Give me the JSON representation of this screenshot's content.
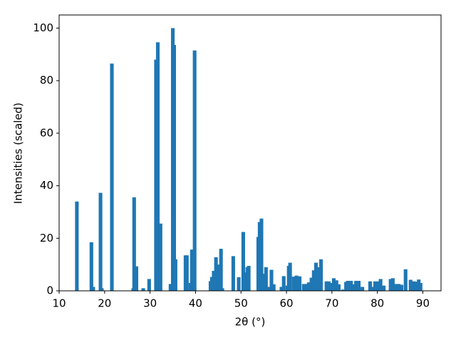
{
  "chart_data": {
    "type": "bar",
    "x_label": "2θ (°)",
    "y_label": "Intensities (scaled)",
    "color": "#1f77b4",
    "x": [
      13.9,
      17.1,
      17.5,
      19.1,
      19.4,
      21.6,
      26.3,
      26.5,
      27.0,
      28.5,
      29.8,
      31.3,
      31.7,
      32.3,
      34.5,
      35.0,
      35.3,
      35.6,
      37.8,
      38.1,
      38.9,
      39.2,
      39.8,
      43.3,
      43.6,
      44.0,
      44.5,
      45.0,
      45.6,
      45.9,
      48.3,
      49.5,
      50.5,
      50.9,
      51.4,
      51.7,
      53.8,
      54.1,
      54.5,
      55.0,
      55.5,
      56.1,
      56.7,
      57.2,
      58.9,
      59.4,
      60.2,
      60.5,
      60.8,
      61.6,
      62.2,
      62.9,
      63.8,
      64.4,
      64.9,
      65.5,
      66.0,
      66.5,
      66.9,
      67.6,
      68.8,
      69.3,
      69.8,
      70.4,
      71.0,
      71.5,
      72.4,
      73.1,
      73.5,
      74.2,
      74.8,
      75.3,
      75.9,
      76.7,
      78.4,
      78.9,
      79.5,
      80.1,
      80.7,
      81.4,
      82.9,
      83.4,
      84.0,
      84.7,
      85.3,
      86.2,
      87.3,
      88.0,
      88.6,
      89.1,
      89.5
    ],
    "values": [
      34,
      18.5,
      1.5,
      37.3,
      1,
      86.5,
      1,
      35.6,
      9.3,
      1,
      4.5,
      88,
      94.6,
      25.6,
      2.6,
      100,
      93.6,
      12,
      13.5,
      13.5,
      3,
      15.7,
      91.5,
      3.7,
      5.3,
      7.6,
      12.8,
      10,
      16,
      1,
      13.2,
      5.2,
      22.4,
      7,
      9,
      9.5,
      20.5,
      26.2,
      27.5,
      6.5,
      9,
      1.5,
      8,
      2.5,
      1.5,
      5.6,
      2,
      9.5,
      10.7,
      5.4,
      5.8,
      5.5,
      2.6,
      2.6,
      3.2,
      5,
      7.8,
      10.7,
      9,
      12,
      3.6,
      3.6,
      3,
      4.8,
      4,
      2.5,
      0.5,
      3.4,
      3.8,
      3.8,
      2.5,
      3.8,
      3.8,
      1.5,
      3.6,
      1.5,
      3.6,
      3.6,
      4.5,
      2,
      4.5,
      4.8,
      2.6,
      2.6,
      2.3,
      8.2,
      4.2,
      3.6,
      3.5,
      4.3,
      3
    ],
    "xlim": [
      10,
      94
    ],
    "ylim": [
      0,
      105
    ],
    "xticks": [
      10,
      20,
      30,
      40,
      50,
      60,
      70,
      80,
      90
    ],
    "yticks": [
      0,
      20,
      40,
      60,
      80,
      100
    ]
  }
}
